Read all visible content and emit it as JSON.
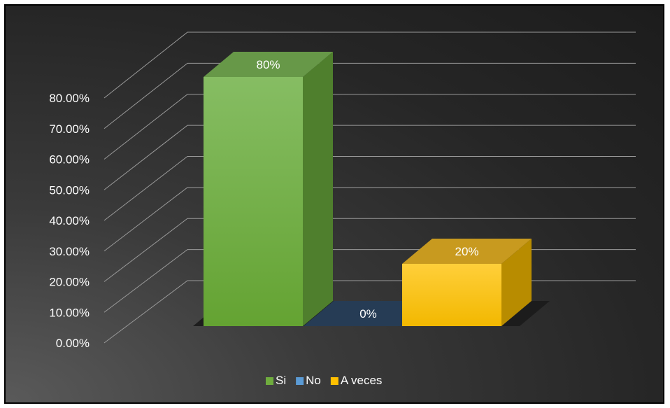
{
  "chart_data": {
    "type": "bar",
    "style": "3d-column",
    "categories": [
      "Si",
      "No",
      "A veces"
    ],
    "values": [
      0.8,
      0.0,
      0.2
    ],
    "data_labels": [
      "80%",
      "0%",
      "20%"
    ],
    "y_ticks": [
      "0.00%",
      "10.00%",
      "20.00%",
      "30.00%",
      "40.00%",
      "50.00%",
      "60.00%",
      "70.00%",
      "80.00%"
    ],
    "ylim": [
      0,
      0.8
    ],
    "grid": true,
    "legend": {
      "placement": "bottom",
      "entries": [
        {
          "label": "Si",
          "color": "#6fac3e"
        },
        {
          "label": "No",
          "color": "#5b9bd5"
        },
        {
          "label": "A veces",
          "color": "#ffc000"
        }
      ]
    },
    "colors": {
      "background": "#262626",
      "gridline": "#9a9a9a",
      "text": "#ffffff",
      "floor": "#1b1b1b"
    }
  }
}
